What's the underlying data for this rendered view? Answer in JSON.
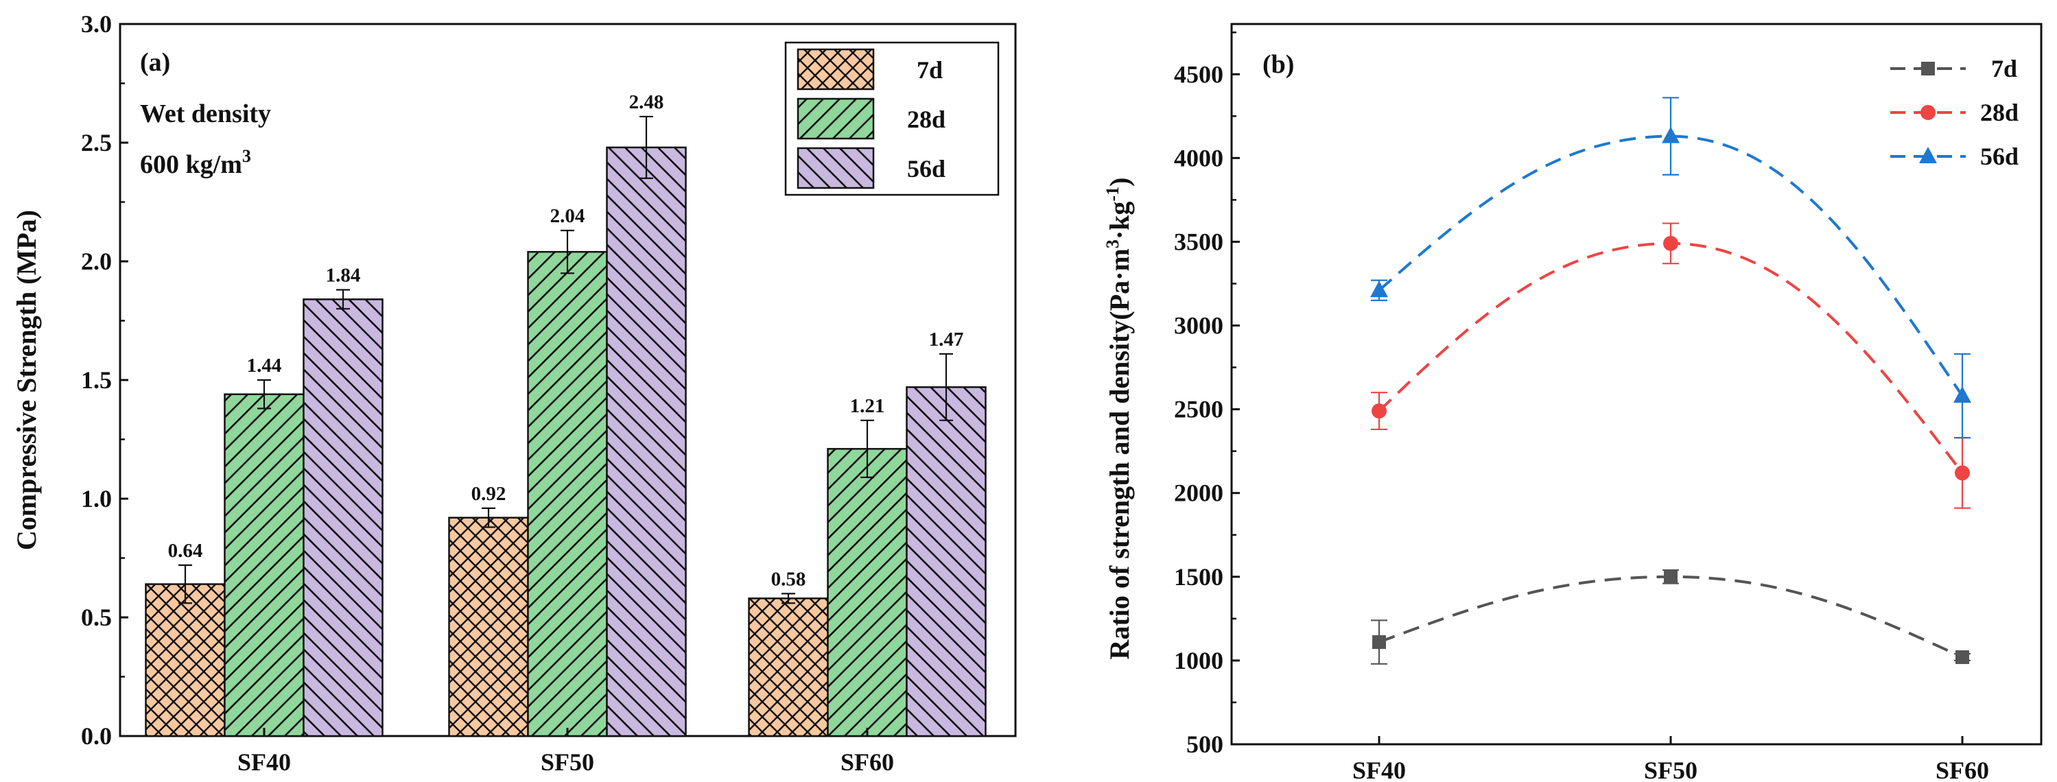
{
  "chart_data": [
    {
      "type": "bar",
      "panel": "(a)",
      "annotation_lines": [
        "Wet density",
        "600 kg/m"
      ],
      "annotation_superscript": "3",
      "ylabel": "Compressive Strength (MPa)",
      "xlabel": "",
      "ylim": [
        0.0,
        3.0
      ],
      "yticks": [
        "0.0",
        "0.5",
        "1.0",
        "1.5",
        "2.0",
        "2.5",
        "3.0"
      ],
      "categories": [
        "SF40",
        "SF50",
        "SF60"
      ],
      "legend_position": "top-right",
      "series": [
        {
          "name": "7d",
          "values": [
            0.64,
            0.92,
            0.58
          ],
          "labels": [
            "0.64",
            "0.92",
            "0.58"
          ],
          "errors": [
            0.08,
            0.04,
            0.02
          ],
          "color": "#F8C8A0",
          "hatch": "cross"
        },
        {
          "name": "28d",
          "values": [
            1.44,
            2.04,
            1.21
          ],
          "labels": [
            "1.44",
            "2.04",
            "1.21"
          ],
          "errors": [
            0.06,
            0.09,
            0.12
          ],
          "color": "#8FD79B",
          "hatch": "forward"
        },
        {
          "name": "56d",
          "values": [
            1.84,
            2.48,
            1.47
          ],
          "labels": [
            "1.84",
            "2.48",
            "1.47"
          ],
          "errors": [
            0.04,
            0.13,
            0.14
          ],
          "color": "#C9B8E0",
          "hatch": "backward"
        }
      ]
    },
    {
      "type": "line",
      "panel": "(b)",
      "ylabel_main": "Ratio of strength and density",
      "ylabel_unit_prefix": "(Pa·m",
      "ylabel_unit_sup1": "3",
      "ylabel_unit_mid": "·kg",
      "ylabel_unit_sup2": "-1",
      "ylabel_unit_suffix": ")",
      "xlabel": "",
      "ylim": [
        500,
        4800
      ],
      "yticks": [
        "500",
        "1000",
        "1500",
        "2000",
        "2500",
        "3000",
        "3500",
        "4000",
        "4500"
      ],
      "categories": [
        "SF40",
        "SF50",
        "SF60"
      ],
      "legend_position": "top-right",
      "series": [
        {
          "name": "7d",
          "values": [
            1110,
            1500,
            1020
          ],
          "errors": [
            130,
            40,
            20
          ],
          "color": "#555555",
          "marker": "square"
        },
        {
          "name": "28d",
          "values": [
            2490,
            3490,
            2120
          ],
          "errors": [
            110,
            120,
            210
          ],
          "color": "#EE4444",
          "marker": "circle"
        },
        {
          "name": "56d",
          "values": [
            3210,
            4130,
            2580
          ],
          "errors": [
            60,
            230,
            250
          ],
          "color": "#1E78D2",
          "marker": "triangle"
        }
      ]
    }
  ]
}
